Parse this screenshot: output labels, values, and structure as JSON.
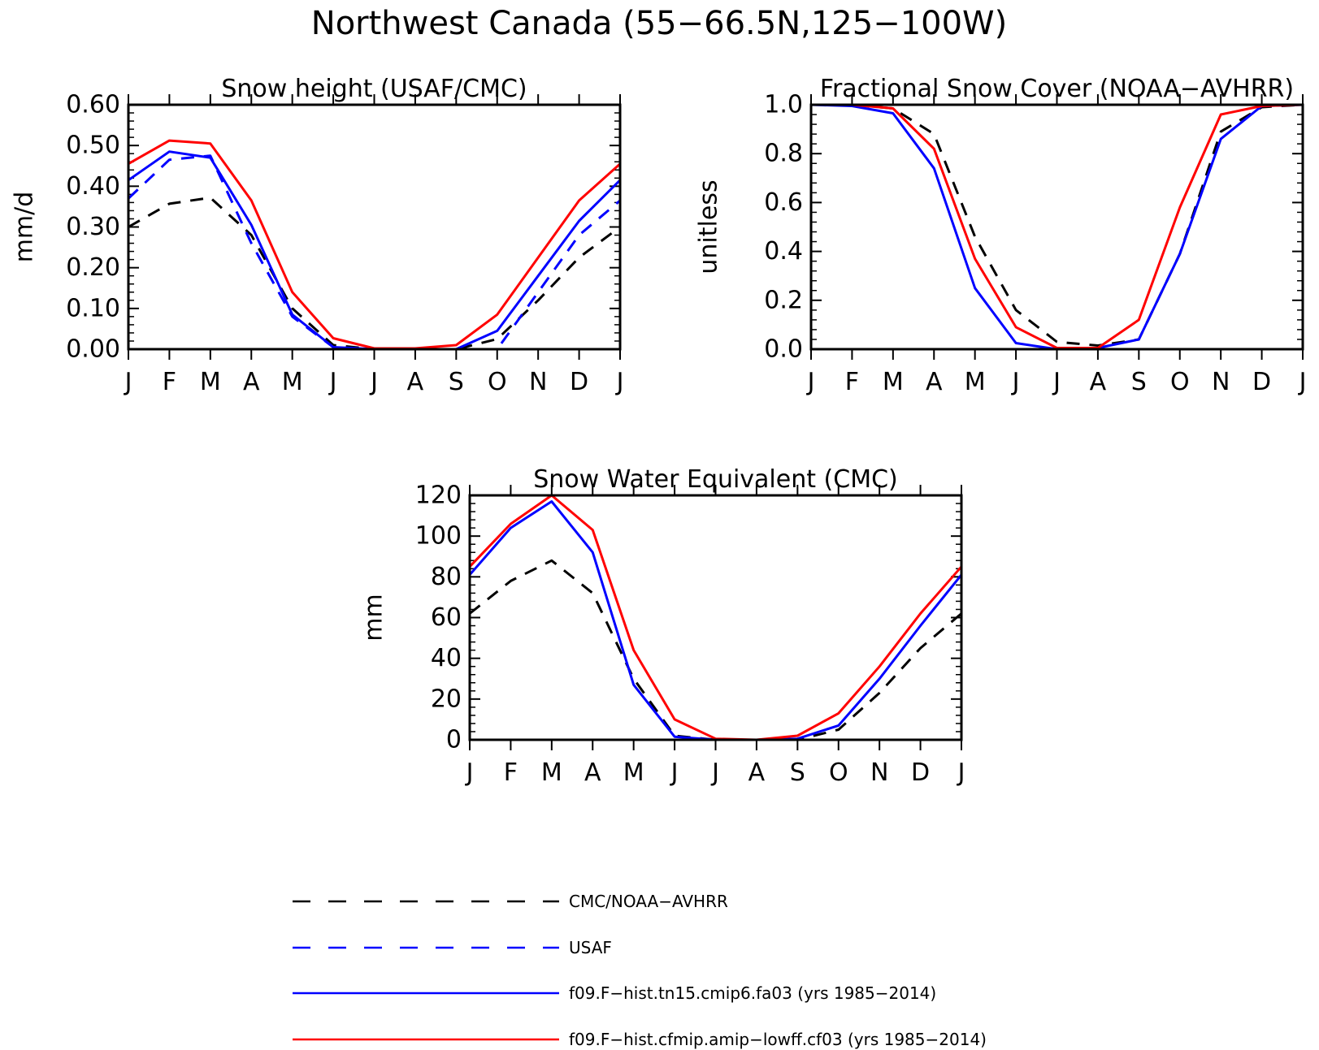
{
  "figure": {
    "title": "Northwest Canada (55−66.5N,125−100W)"
  },
  "colors": {
    "black": "#000000",
    "blue": "#0000ff",
    "red": "#ff0000"
  },
  "legend": [
    {
      "label": "CMC/NOAA−AVHRR",
      "color": "#000000",
      "dash": true
    },
    {
      "label": "USAF",
      "color": "#0000ff",
      "dash": true
    },
    {
      "label": "f09.F−hist.tn15.cmip6.fa03 (yrs 1985−2014)",
      "color": "#0000ff",
      "dash": false
    },
    {
      "label": "f09.F−hist.cfmip.amip−lowff.cf03 (yrs 1985−2014)",
      "color": "#ff0000",
      "dash": false
    }
  ],
  "chart_data": [
    {
      "type": "line",
      "title": "Snow height (USAF/CMC)",
      "ylabel": "mm/d",
      "ylim": [
        0,
        0.6
      ],
      "yticks": [
        "0.00",
        "0.10",
        "0.20",
        "0.30",
        "0.40",
        "0.50",
        "0.60"
      ],
      "categories": [
        "J",
        "F",
        "M",
        "A",
        "M",
        "J",
        "J",
        "A",
        "S",
        "O",
        "N",
        "D",
        "J"
      ],
      "series": [
        {
          "name": "CMC/NOAA−AVHRR",
          "color": "#000000",
          "dash": true,
          "values": [
            0.3,
            0.357,
            0.372,
            0.28,
            0.1,
            0.01,
            0.0,
            0.0,
            0.0,
            0.025,
            0.12,
            0.225,
            0.3
          ]
        },
        {
          "name": "USAF",
          "color": "#0000ff",
          "dash": true,
          "values": [
            0.37,
            0.465,
            0.475,
            0.26,
            0.08,
            0.005,
            0.0,
            0.0,
            0.0,
            0.0,
            0.14,
            0.28,
            0.365
          ]
        },
        {
          "name": "f09.F−hist.tn15.cmip6.fa03 (yrs 1985−2014)",
          "color": "#0000ff",
          "dash": false,
          "values": [
            0.415,
            0.485,
            0.47,
            0.305,
            0.085,
            0.005,
            0.0,
            0.0,
            0.0,
            0.045,
            0.18,
            0.315,
            0.415
          ]
        },
        {
          "name": "f09.F−hist.cfmip.amip−lowff.cf03 (yrs 1985−2014)",
          "color": "#ff0000",
          "dash": false,
          "values": [
            0.455,
            0.512,
            0.505,
            0.365,
            0.14,
            0.027,
            0.002,
            0.002,
            0.01,
            0.085,
            0.225,
            0.365,
            0.455
          ]
        }
      ]
    },
    {
      "type": "line",
      "title": "Fractional Snow Cover (NOAA−AVHRR)",
      "ylabel": "unitless",
      "ylim": [
        0,
        1.0
      ],
      "yticks": [
        "0.0",
        "0.2",
        "0.4",
        "0.6",
        "0.8",
        "1.0"
      ],
      "categories": [
        "J",
        "F",
        "M",
        "A",
        "M",
        "J",
        "J",
        "A",
        "S",
        "O",
        "N",
        "D",
        "J"
      ],
      "series": [
        {
          "name": "CMC/NOAA−AVHRR",
          "color": "#000000",
          "dash": true,
          "values": [
            1.0,
            1.0,
            0.985,
            0.88,
            0.46,
            0.16,
            0.03,
            0.015,
            0.04,
            0.39,
            0.89,
            0.99,
            1.0
          ]
        },
        {
          "name": "f09.F−hist.tn15.cmip6.fa03 (yrs 1985−2014)",
          "color": "#0000ff",
          "dash": false,
          "values": [
            1.0,
            0.995,
            0.965,
            0.74,
            0.25,
            0.025,
            0.0,
            0.005,
            0.04,
            0.39,
            0.86,
            0.995,
            1.0
          ]
        },
        {
          "name": "f09.F−hist.cfmip.amip−lowff.cf03 (yrs 1985−2014)",
          "color": "#ff0000",
          "dash": false,
          "values": [
            1.0,
            1.0,
            0.985,
            0.82,
            0.37,
            0.09,
            0.005,
            0.005,
            0.12,
            0.58,
            0.96,
            0.995,
            1.0
          ]
        }
      ]
    },
    {
      "type": "line",
      "title": "Snow Water Equivalent (CMC)",
      "ylabel": "mm",
      "ylim": [
        0,
        120
      ],
      "yticks": [
        "0",
        "20",
        "40",
        "60",
        "80",
        "100",
        "120"
      ],
      "categories": [
        "J",
        "F",
        "M",
        "A",
        "M",
        "J",
        "J",
        "A",
        "S",
        "O",
        "N",
        "D",
        "J"
      ],
      "series": [
        {
          "name": "CMC/NOAA−AVHRR",
          "color": "#000000",
          "dash": true,
          "values": [
            62,
            78,
            88,
            72,
            30,
            2,
            0,
            0,
            0,
            5,
            23,
            45,
            62
          ]
        },
        {
          "name": "f09.F−hist.tn15.cmip6.fa03 (yrs 1985−2014)",
          "color": "#0000ff",
          "dash": false,
          "values": [
            81,
            104,
            117,
            92,
            27,
            1.5,
            0,
            0,
            0.5,
            7,
            30,
            56,
            81
          ]
        },
        {
          "name": "f09.F−hist.cfmip.amip−lowff.cf03 (yrs 1985−2014)",
          "color": "#ff0000",
          "dash": false,
          "values": [
            85,
            106,
            120,
            103,
            44,
            10,
            0.5,
            0,
            2,
            13,
            36,
            62,
            85
          ]
        }
      ]
    }
  ]
}
